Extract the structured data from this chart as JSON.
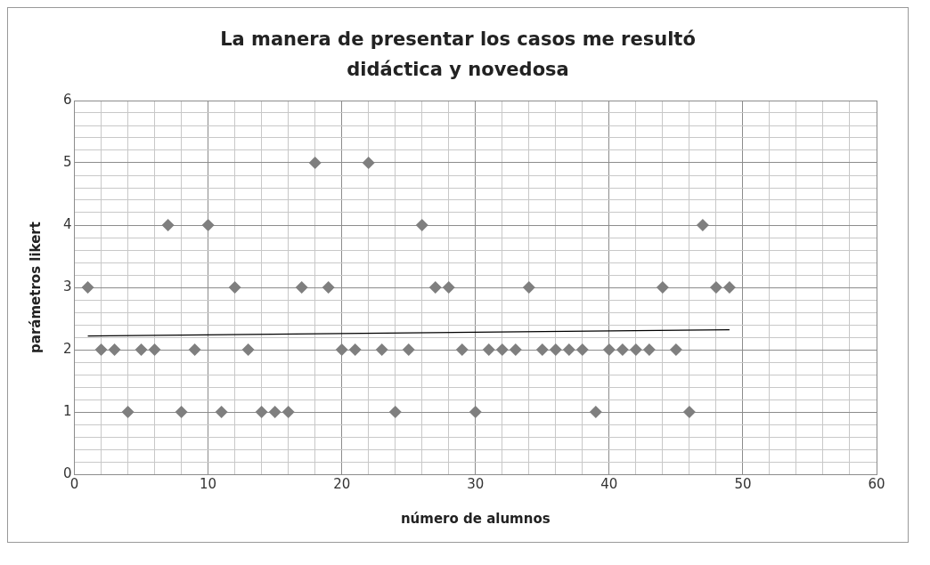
{
  "chart_data": {
    "type": "scatter",
    "title": "La manera de presentar los casos me resultó didáctica y novedosa",
    "xlabel": "número de alumnos",
    "ylabel": "parámetros likert",
    "grid": true,
    "legend": false,
    "xlim": [
      0,
      60
    ],
    "ylim": [
      0,
      6
    ],
    "xticks": [
      0,
      {
        "value": 2,
        "label": null
      },
      {
        "value": 4,
        "label": null
      },
      {
        "value": 6,
        "label": null
      },
      {
        "value": 8,
        "label": null
      },
      10,
      {
        "value": 12,
        "label": null
      },
      {
        "value": 14,
        "label": null
      },
      {
        "value": 16,
        "label": null
      },
      {
        "value": 18,
        "label": null
      },
      20,
      {
        "value": 22,
        "label": null
      },
      {
        "value": 24,
        "label": null
      },
      {
        "value": 26,
        "label": null
      },
      {
        "value": 28,
        "label": null
      },
      30,
      {
        "value": 32,
        "label": null
      },
      {
        "value": 34,
        "label": null
      },
      {
        "value": 36,
        "label": null
      },
      {
        "value": 38,
        "label": null
      },
      40,
      {
        "value": 42,
        "label": null
      },
      {
        "value": 44,
        "label": null
      },
      {
        "value": 46,
        "label": null
      },
      {
        "value": 48,
        "label": null
      },
      50,
      {
        "value": 52,
        "label": null
      },
      {
        "value": 54,
        "label": null
      },
      {
        "value": 56,
        "label": null
      },
      {
        "value": 58,
        "label": null
      },
      60
    ],
    "yticks": [
      0,
      {
        "value": 0.2,
        "label": null
      },
      {
        "value": 0.4,
        "label": null
      },
      {
        "value": 0.6,
        "label": null
      },
      {
        "value": 0.8,
        "label": null
      },
      1,
      {
        "value": 1.2,
        "label": null
      },
      {
        "value": 1.4,
        "label": null
      },
      {
        "value": 1.6,
        "label": null
      },
      {
        "value": 1.8,
        "label": null
      },
      2,
      {
        "value": 2.2,
        "label": null
      },
      {
        "value": 2.4,
        "label": null
      },
      {
        "value": 2.6,
        "label": null
      },
      {
        "value": 2.8,
        "label": null
      },
      3,
      {
        "value": 3.2,
        "label": null
      },
      {
        "value": 3.4,
        "label": null
      },
      {
        "value": 3.6,
        "label": null
      },
      {
        "value": 3.8,
        "label": null
      },
      4,
      {
        "value": 4.2,
        "label": null
      },
      {
        "value": 4.4,
        "label": null
      },
      {
        "value": 4.6,
        "label": null
      },
      {
        "value": 4.8,
        "label": null
      },
      5,
      {
        "value": 5.2,
        "label": null
      },
      {
        "value": 5.4,
        "label": null
      },
      {
        "value": 5.6,
        "label": null
      },
      {
        "value": 5.8,
        "label": null
      },
      6
    ],
    "series": [
      {
        "type": "scatter",
        "marker": "diamond",
        "color": "#7f7f7f",
        "x": [
          1,
          2,
          3,
          4,
          5,
          6,
          7,
          8,
          9,
          10,
          11,
          12,
          13,
          14,
          15,
          16,
          17,
          18,
          19,
          20,
          21,
          22,
          23,
          24,
          25,
          26,
          27,
          28,
          29,
          30,
          31,
          32,
          33,
          34,
          35,
          36,
          37,
          38,
          39,
          40,
          41,
          42,
          43,
          44,
          45,
          46,
          47,
          48,
          49
        ],
        "values": [
          3,
          2,
          2,
          1,
          2,
          2,
          4,
          1,
          2,
          4,
          1,
          3,
          2,
          1,
          1,
          1,
          3,
          5,
          3,
          2,
          2,
          5,
          2,
          1,
          2,
          4,
          3,
          3,
          2,
          1,
          2,
          2,
          2,
          3,
          2,
          2,
          2,
          2,
          1,
          2,
          2,
          2,
          2,
          3,
          2,
          1,
          4,
          3,
          3
        ]
      },
      {
        "type": "line",
        "color": "#000000",
        "x": [
          1,
          49
        ],
        "values": [
          2.22,
          2.32
        ]
      }
    ]
  }
}
